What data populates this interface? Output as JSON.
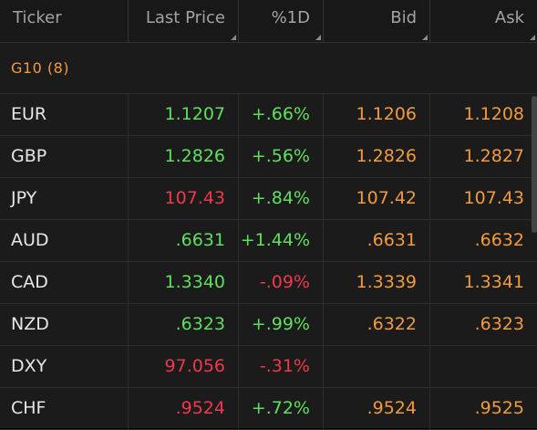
{
  "colors": {
    "up": "#5ee05e",
    "down": "#f0384c",
    "quote": "#f29a3d",
    "ticker": "#e6e6e6",
    "header": "#a3a3a3"
  },
  "columns": [
    {
      "key": "ticker",
      "label": "Ticker"
    },
    {
      "key": "last",
      "label": "Last Price"
    },
    {
      "key": "pct",
      "label": "%1D"
    },
    {
      "key": "bid",
      "label": "Bid"
    },
    {
      "key": "ask",
      "label": "Ask"
    }
  ],
  "group": {
    "label": "G10 (8)"
  },
  "rows": [
    {
      "ticker": "EUR",
      "last": "1.1207",
      "last_dir": "up",
      "pct": "+.66%",
      "pct_dir": "up",
      "bid": "1.1206",
      "ask": "1.1208"
    },
    {
      "ticker": "GBP",
      "last": "1.2826",
      "last_dir": "up",
      "pct": "+.56%",
      "pct_dir": "up",
      "bid": "1.2826",
      "ask": "1.2827"
    },
    {
      "ticker": "JPY",
      "last": "107.43",
      "last_dir": "down",
      "pct": "+.84%",
      "pct_dir": "up",
      "bid": "107.42",
      "ask": "107.43"
    },
    {
      "ticker": "AUD",
      "last": ".6631",
      "last_dir": "up",
      "pct": "+1.44%",
      "pct_dir": "up",
      "bid": ".6631",
      "ask": ".6632"
    },
    {
      "ticker": "CAD",
      "last": "1.3340",
      "last_dir": "up",
      "pct": "-.09%",
      "pct_dir": "down",
      "bid": "1.3339",
      "ask": "1.3341"
    },
    {
      "ticker": "NZD",
      "last": ".6323",
      "last_dir": "up",
      "pct": "+.99%",
      "pct_dir": "up",
      "bid": ".6322",
      "ask": ".6323"
    },
    {
      "ticker": "DXY",
      "last": "97.056",
      "last_dir": "down",
      "pct": "-.31%",
      "pct_dir": "down",
      "bid": "",
      "ask": ""
    },
    {
      "ticker": "CHF",
      "last": ".9524",
      "last_dir": "down",
      "pct": "+.72%",
      "pct_dir": "up",
      "bid": ".9524",
      "ask": ".9525"
    }
  ]
}
